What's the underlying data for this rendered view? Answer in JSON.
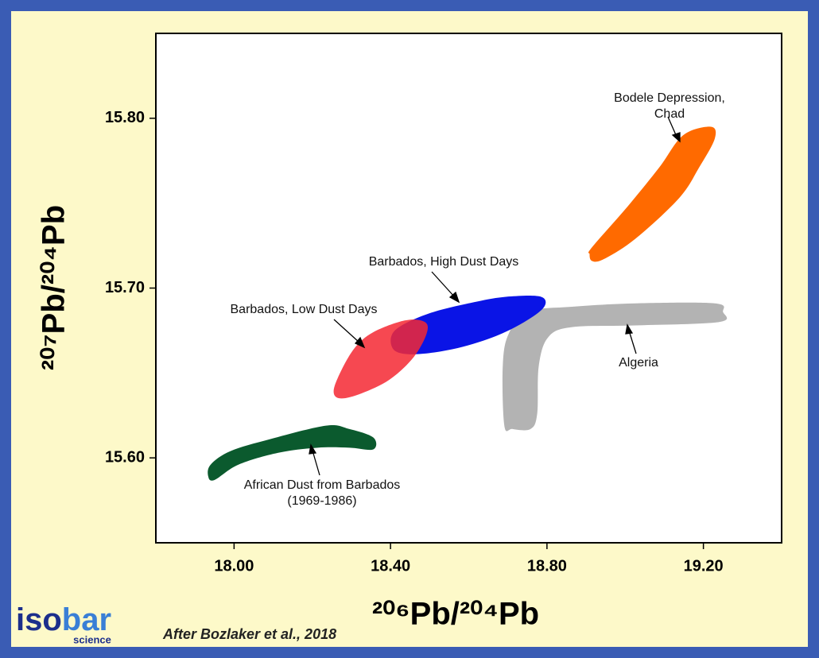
{
  "chart_data": {
    "type": "region",
    "xlabel": "²⁰⁶Pb/²⁰⁴Pb",
    "ylabel": "²⁰⁷Pb/²⁰⁴Pb",
    "xlim": [
      17.8,
      19.4
    ],
    "ylim": [
      15.55,
      15.85
    ],
    "xticks": [
      {
        "value": 18.0,
        "label": "18.00"
      },
      {
        "value": 18.4,
        "label": "18.40"
      },
      {
        "value": 18.8,
        "label": "18.80"
      },
      {
        "value": 19.2,
        "label": "19.20"
      }
    ],
    "yticks": [
      {
        "value": 15.6,
        "label": "15.60"
      },
      {
        "value": 15.7,
        "label": "15.70"
      },
      {
        "value": 15.8,
        "label": "15.80"
      }
    ],
    "series": [
      {
        "name": "African Dust from Barbados\n(1969-1986)",
        "color": "#0b5a2e",
        "x": [
          17.934,
          17.94,
          17.991,
          18.092,
          18.235,
          18.295,
          18.356,
          18.356,
          18.295,
          18.214,
          18.113,
          18.011,
          17.95
        ],
        "y": [
          15.589,
          15.596,
          15.604,
          15.611,
          15.619,
          15.617,
          15.612,
          15.605,
          15.606,
          15.606,
          15.603,
          15.596,
          15.587
        ]
      },
      {
        "name": "Algeria",
        "color": "#b3b3b3",
        "x": [
          18.691,
          18.687,
          18.702,
          18.752,
          18.864,
          19.026,
          19.229,
          19.25,
          19.24,
          19.026,
          18.864,
          18.803,
          18.779,
          18.775,
          18.758,
          18.712
        ],
        "y": [
          15.619,
          15.654,
          15.673,
          15.686,
          15.689,
          15.691,
          15.691,
          15.686,
          15.68,
          15.678,
          15.677,
          15.671,
          15.654,
          15.626,
          15.617,
          15.617
        ]
      },
      {
        "name": "Barbados, High Dust Days",
        "color": "#0a14e6",
        "x": [
          18.407,
          18.411,
          18.498,
          18.62,
          18.702,
          18.783,
          18.793,
          18.742,
          18.661,
          18.559,
          18.458
        ],
        "y": [
          15.664,
          15.675,
          15.685,
          15.692,
          15.695,
          15.695,
          15.689,
          15.68,
          15.671,
          15.664,
          15.661
        ]
      },
      {
        "name": "Barbados, Low Dust Days",
        "color": "rgba(245,40,50,0.85)",
        "x": [
          18.255,
          18.265,
          18.306,
          18.356,
          18.438,
          18.488,
          18.492,
          18.458,
          18.397,
          18.326,
          18.275
        ],
        "y": [
          15.638,
          15.647,
          15.664,
          15.674,
          15.681,
          15.68,
          15.673,
          15.659,
          15.646,
          15.638,
          15.635
        ]
      },
      {
        "name": "Bodele Depression, Chad",
        "color": "#ff6a00",
        "x": [
          18.909,
          18.915,
          19.006,
          19.087,
          19.148,
          19.219,
          19.229,
          19.189,
          19.138,
          19.026,
          18.945,
          18.915
        ],
        "y": [
          15.72,
          15.724,
          15.748,
          15.771,
          15.79,
          15.795,
          15.788,
          15.771,
          15.753,
          15.729,
          15.717,
          15.716
        ]
      }
    ],
    "source": "After Bozlaker et al., 2018"
  },
  "logo": {
    "part1": "iso",
    "part2": "bar",
    "sub": "science"
  }
}
